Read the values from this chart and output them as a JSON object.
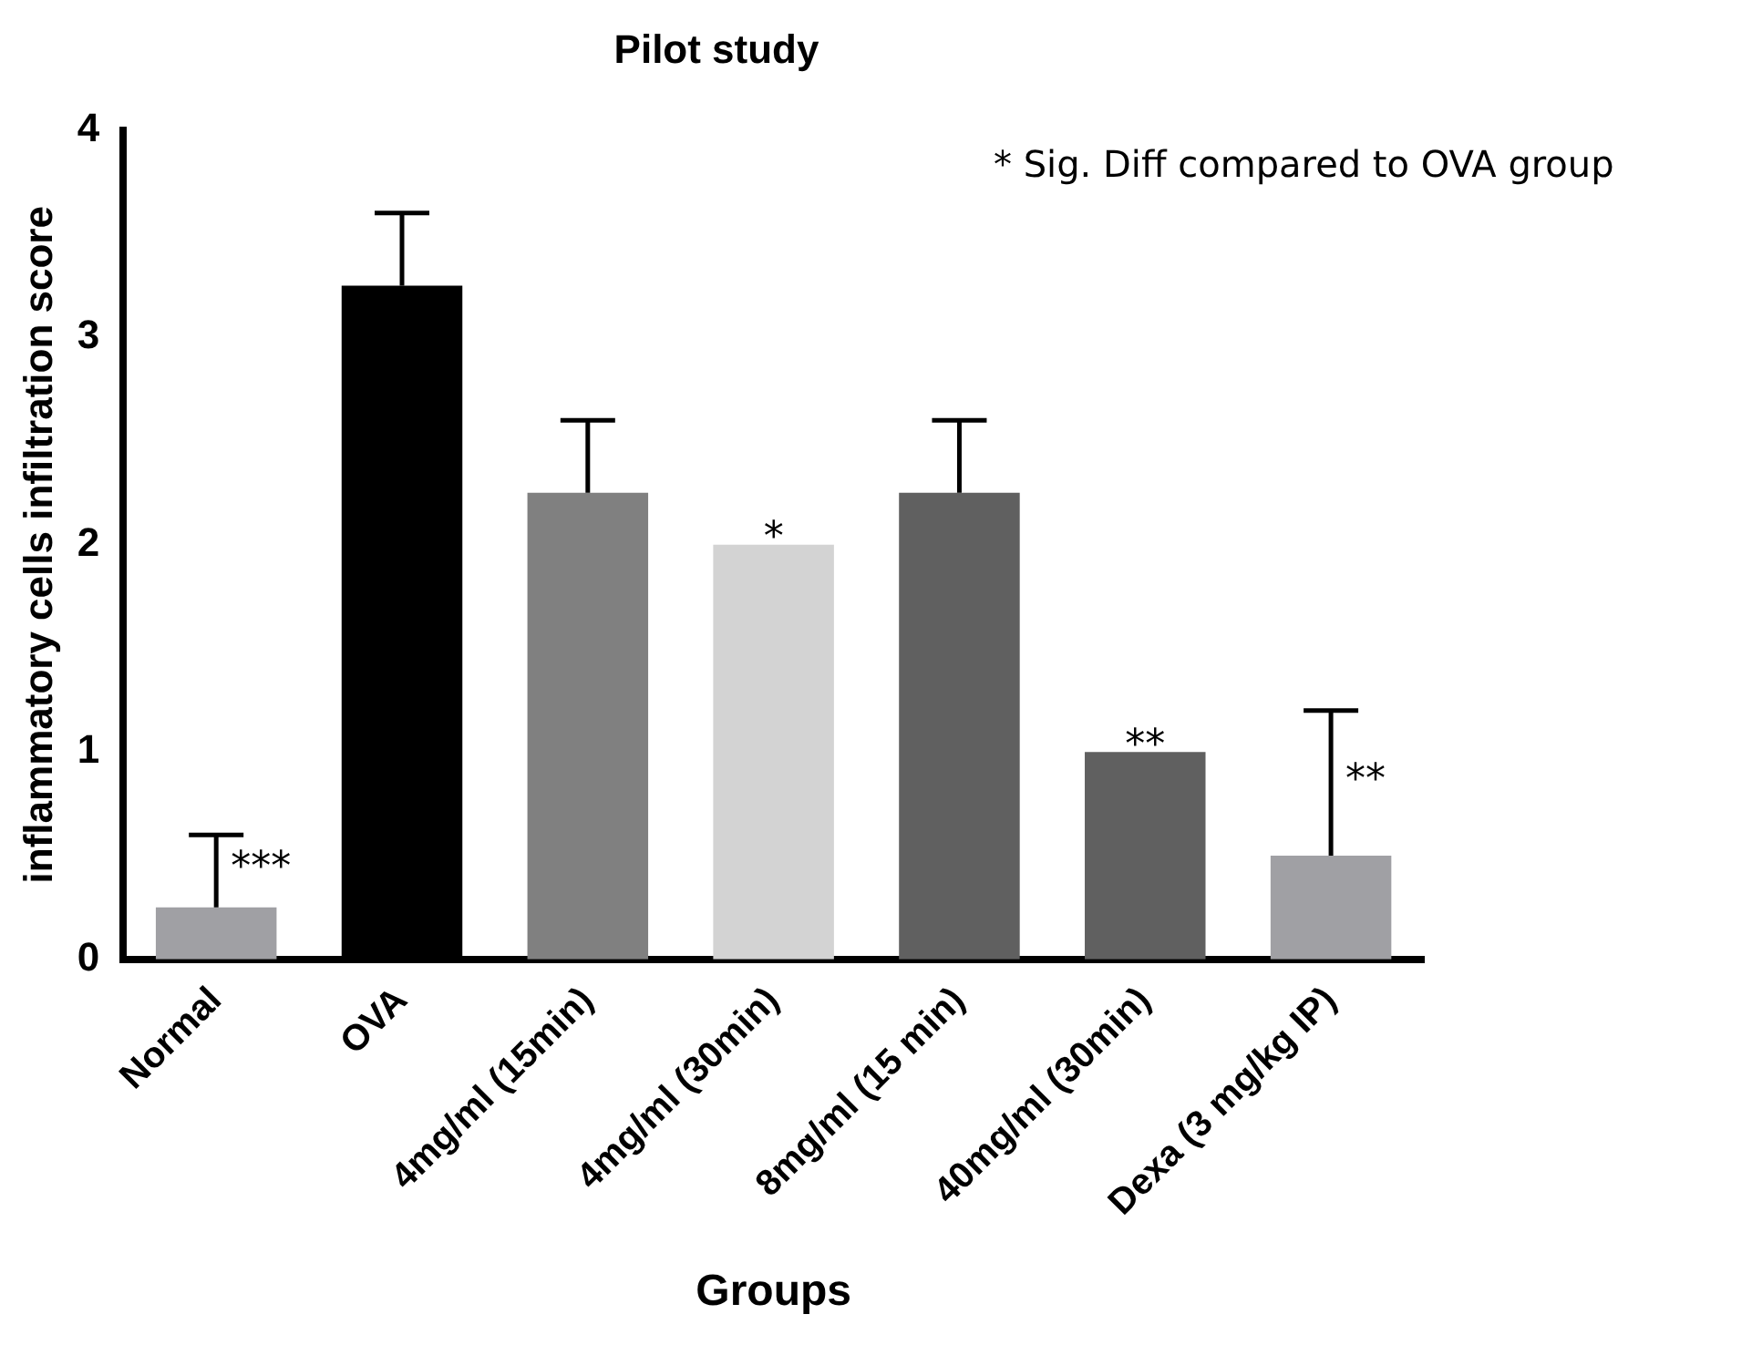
{
  "chart_data": {
    "type": "bar",
    "title": "Pilot study",
    "xlabel": "Groups",
    "ylabel": "inflammatory cells infiltration score",
    "categories": [
      "Normal",
      "OVA",
      "4mg/ml (15min)",
      "4mg/ml (30min)",
      "8mg/ml (15 min)",
      "40mg/ml (30min)",
      "Dexa (3 mg/kg IP)"
    ],
    "values": [
      0.25,
      3.25,
      2.25,
      2.0,
      2.25,
      1.0,
      0.5
    ],
    "colors": [
      "#a0a0a4",
      "#000000",
      "#808080",
      "#d3d3d3",
      "#606060",
      "#606060",
      "#a0a0a4"
    ],
    "errors": [
      [
        0.25,
        0.6
      ],
      [
        3.25,
        3.6
      ],
      [
        2.25,
        2.6
      ],
      null,
      [
        2.25,
        2.6
      ],
      null,
      [
        0.5,
        1.2
      ]
    ],
    "ylim": [
      0,
      4
    ],
    "yticks": [
      0,
      1,
      2,
      3,
      4
    ],
    "grid": false,
    "legend": false,
    "value_labels": [
      "***",
      null,
      null,
      "*",
      null,
      "**",
      "**"
    ],
    "annotations": [
      "*    Sig. Diff compared to OVA group"
    ]
  }
}
